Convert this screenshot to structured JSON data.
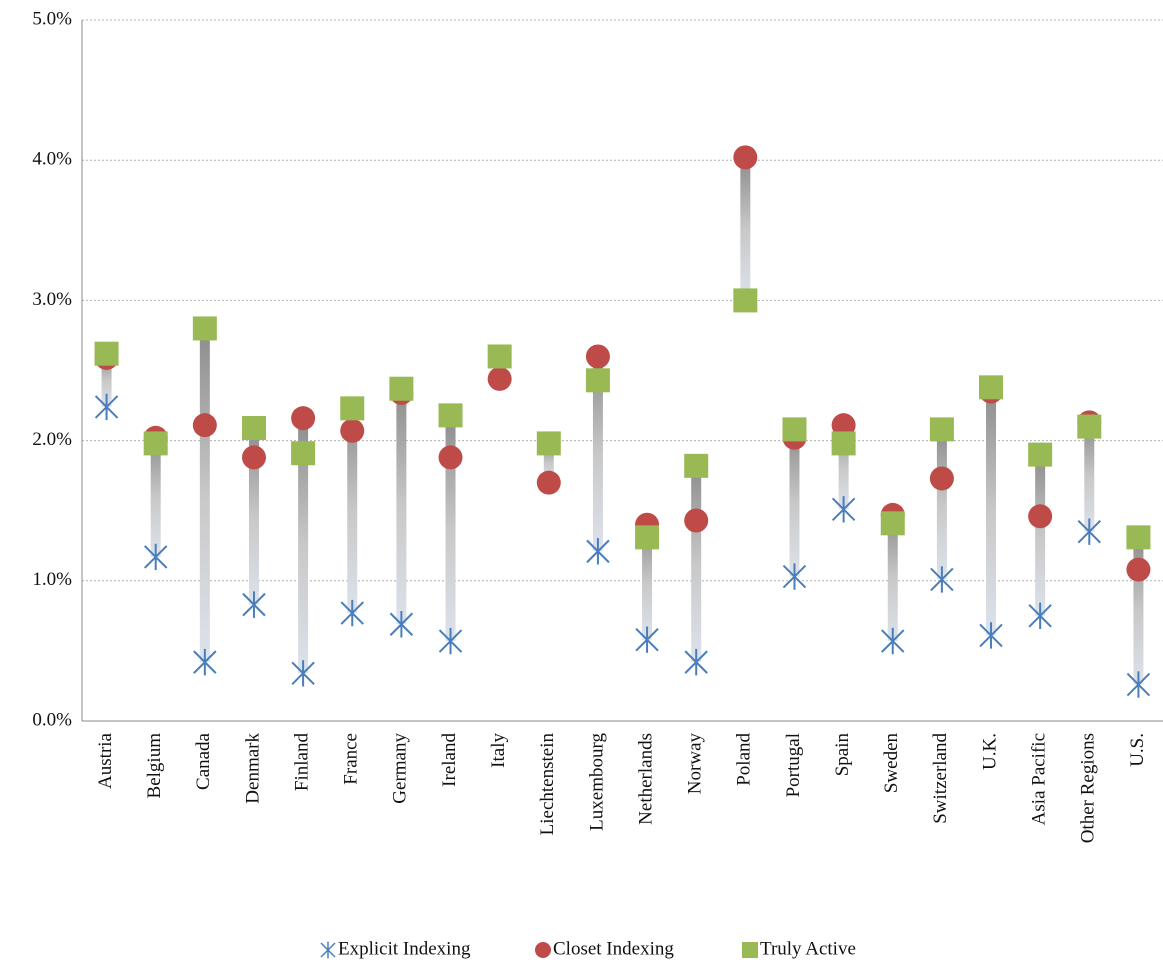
{
  "chart_data": {
    "type": "dot",
    "categories": [
      "Austria",
      "Belgium",
      "Canada",
      "Denmark",
      "Finland",
      "France",
      "Germany",
      "Ireland",
      "Italy",
      "Liechtenstein",
      "Luxembourg",
      "Netherlands",
      "Norway",
      "Poland",
      "Portugal",
      "Spain",
      "Sweden",
      "Switzerland",
      "U.K.",
      "Asia Pacific",
      "Other Regions",
      "U.S."
    ],
    "series": [
      {
        "name": "Explicit Indexing",
        "color": "#4a7ebb",
        "marker": "asterisk",
        "values": [
          2.24,
          1.17,
          0.42,
          0.83,
          0.34,
          0.77,
          0.69,
          0.57,
          null,
          null,
          1.21,
          0.58,
          0.42,
          null,
          1.03,
          1.51,
          0.57,
          1.01,
          0.61,
          0.75,
          1.35,
          0.26
        ]
      },
      {
        "name": "Closet Indexing",
        "color": "#be4b48",
        "marker": "circle",
        "values": [
          2.59,
          2.02,
          2.11,
          1.88,
          2.16,
          2.07,
          2.34,
          1.88,
          2.44,
          1.7,
          2.6,
          1.4,
          1.43,
          4.02,
          2.02,
          2.11,
          1.47,
          1.73,
          2.35,
          1.46,
          2.13,
          1.08
        ]
      },
      {
        "name": "Truly Active",
        "color": "#98b954",
        "marker": "square",
        "values": [
          2.62,
          1.98,
          2.8,
          2.09,
          1.91,
          2.23,
          2.37,
          2.18,
          2.6,
          1.98,
          2.43,
          1.31,
          1.82,
          3.0,
          2.08,
          1.98,
          1.41,
          2.08,
          2.38,
          1.9,
          2.1,
          1.31
        ]
      }
    ],
    "ylim": [
      0,
      5
    ],
    "yticks": [
      {
        "value": 0,
        "label": "0.0%"
      },
      {
        "value": 1,
        "label": "1.0%"
      },
      {
        "value": 2,
        "label": "2.0%"
      },
      {
        "value": 3,
        "label": "3.0%"
      },
      {
        "value": 4,
        "label": "4.0%"
      },
      {
        "value": 5,
        "label": "5.0%"
      }
    ],
    "grid": true,
    "legend": "bottom"
  }
}
